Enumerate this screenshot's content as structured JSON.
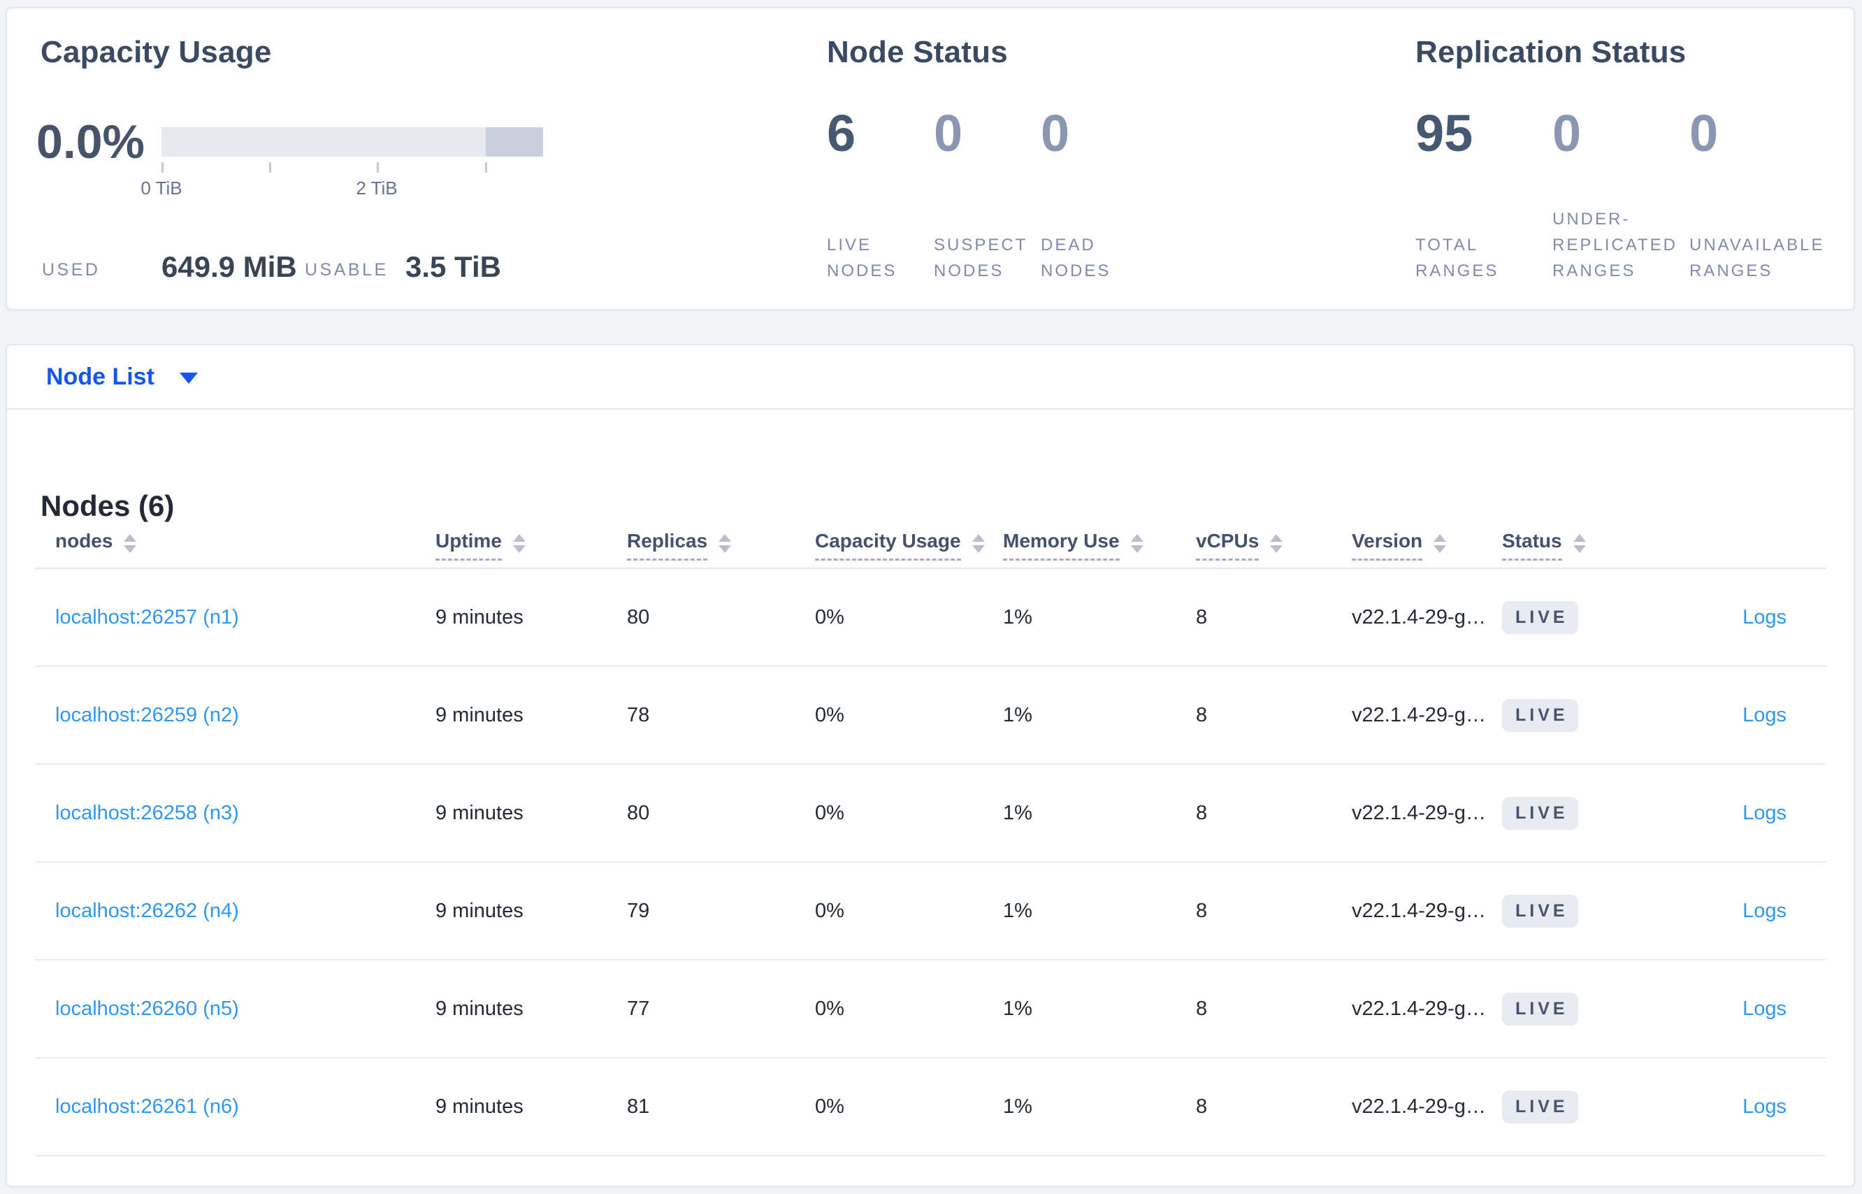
{
  "colors": {
    "page_background": "#f2f4f8",
    "card_background": "#ffffff",
    "accent_blue": "#1456f0",
    "link_blue": "#2e97f2",
    "badge_background": "#e7ebf1",
    "dark_text": "#242a35",
    "stat_dark": "#475872",
    "stat_muted": "#8b97b2",
    "caps_label": "#7f8ba9",
    "bar_track": "#e5e8ee",
    "bar_dark_segment": "#c9cfdb"
  },
  "capacity": {
    "title": "Capacity Usage",
    "percent": "0.0%",
    "ticks": {
      "t0": "0 TiB",
      "t1": "2 TiB"
    },
    "used_label": "USED",
    "used_value": "649.9 MiB",
    "usable_label": "USABLE",
    "usable_value": "3.5 TiB"
  },
  "node_status": {
    "title": "Node Status",
    "stats": [
      {
        "value": "6",
        "label": "LIVE NODES"
      },
      {
        "value": "0",
        "label": "SUSPECT NODES"
      },
      {
        "value": "0",
        "label": "DEAD NODES"
      }
    ]
  },
  "replication": {
    "title": "Replication Status",
    "stats": [
      {
        "value": "95",
        "label": "TOTAL RANGES"
      },
      {
        "value": "0",
        "label": "UNDER-REPLICATED RANGES"
      },
      {
        "value": "0",
        "label": "UNAVAILABLE RANGES"
      }
    ]
  },
  "selector": {
    "label": "Node List"
  },
  "nodes_table": {
    "title": "Nodes (6)",
    "logs_label": "Logs",
    "columns": [
      {
        "label": "nodes",
        "underline": false
      },
      {
        "label": "Uptime",
        "underline": true
      },
      {
        "label": "Replicas",
        "underline": true
      },
      {
        "label": "Capacity Usage",
        "underline": true
      },
      {
        "label": "Memory Use",
        "underline": true
      },
      {
        "label": "vCPUs",
        "underline": true
      },
      {
        "label": "Version",
        "underline": true
      },
      {
        "label": "Status",
        "underline": true
      }
    ],
    "rows": [
      {
        "node": "localhost:26257 (n1)",
        "uptime": "9 minutes",
        "replicas": "80",
        "capacity": "0%",
        "memory": "1%",
        "vcpus": "8",
        "version": "v22.1.4-29-g…",
        "status": "LIVE"
      },
      {
        "node": "localhost:26259 (n2)",
        "uptime": "9 minutes",
        "replicas": "78",
        "capacity": "0%",
        "memory": "1%",
        "vcpus": "8",
        "version": "v22.1.4-29-g…",
        "status": "LIVE"
      },
      {
        "node": "localhost:26258 (n3)",
        "uptime": "9 minutes",
        "replicas": "80",
        "capacity": "0%",
        "memory": "1%",
        "vcpus": "8",
        "version": "v22.1.4-29-g…",
        "status": "LIVE"
      },
      {
        "node": "localhost:26262 (n4)",
        "uptime": "9 minutes",
        "replicas": "79",
        "capacity": "0%",
        "memory": "1%",
        "vcpus": "8",
        "version": "v22.1.4-29-g…",
        "status": "LIVE"
      },
      {
        "node": "localhost:26260 (n5)",
        "uptime": "9 minutes",
        "replicas": "77",
        "capacity": "0%",
        "memory": "1%",
        "vcpus": "8",
        "version": "v22.1.4-29-g…",
        "status": "LIVE"
      },
      {
        "node": "localhost:26261 (n6)",
        "uptime": "9 minutes",
        "replicas": "81",
        "capacity": "0%",
        "memory": "1%",
        "vcpus": "8",
        "version": "v22.1.4-29-g…",
        "status": "LIVE"
      }
    ]
  }
}
